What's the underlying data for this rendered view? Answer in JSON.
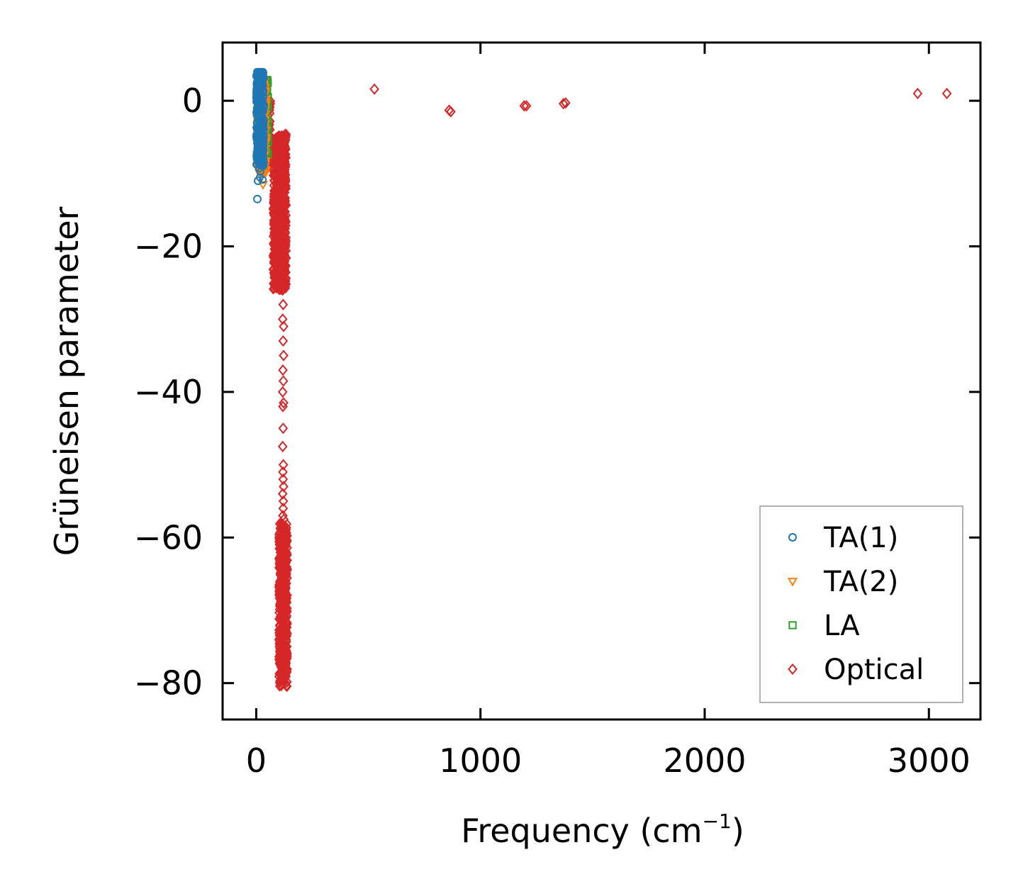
{
  "chart_data": {
    "type": "scatter",
    "title": "",
    "xlabel": "Frequency (cm",
    "xlabel_sup": "−1",
    "xlabel_close": ")",
    "ylabel": "Grüneisen parameter",
    "xlim": [
      -150,
      3230
    ],
    "ylim": [
      -85,
      8
    ],
    "xticks": [
      0,
      1000,
      2000,
      3000
    ],
    "yticks": [
      0,
      -20,
      -40,
      -60,
      -80
    ],
    "xtick_labels": [
      "0",
      "1000",
      "2000",
      "3000"
    ],
    "ytick_labels": [
      "0",
      "−20",
      "−40",
      "−60",
      "−80"
    ],
    "legend_position": "lower-right",
    "series": [
      {
        "name": "TA(1)",
        "marker": "circle",
        "color": "#1f77b4",
        "clusters": [
          {
            "x": [
              0,
              35
            ],
            "y": [
              -9,
              4
            ],
            "n": 320
          },
          {
            "x": [
              10,
              30
            ],
            "y": [
              -11,
              -6
            ],
            "n": 15
          }
        ],
        "points": [
          {
            "x": 5,
            "y": -13.5
          },
          {
            "x": 8,
            "y": -11
          }
        ]
      },
      {
        "name": "TA(2)",
        "marker": "triangle-down",
        "color": "#ff7f0e",
        "clusters": [
          {
            "x": [
              5,
              45
            ],
            "y": [
              -10,
              3
            ],
            "n": 200
          }
        ],
        "points": [
          {
            "x": 30,
            "y": -11.5
          }
        ]
      },
      {
        "name": "LA",
        "marker": "square",
        "color": "#2ca02c",
        "clusters": [
          {
            "x": [
              0,
              55
            ],
            "y": [
              -8,
              3
            ],
            "n": 180
          }
        ],
        "points": [
          {
            "x": 10,
            "y": 3
          }
        ]
      },
      {
        "name": "Optical",
        "marker": "diamond",
        "color": "#d62728",
        "clusters": [
          {
            "x": [
              30,
              65
            ],
            "y": [
              -9,
              0
            ],
            "n": 120
          },
          {
            "x": [
              75,
              135
            ],
            "y": [
              -26,
              -4.5
            ],
            "n": 700
          },
          {
            "x": [
              100,
              140
            ],
            "y": [
              -80.5,
              -58
            ],
            "n": 500
          }
        ],
        "points": [
          {
            "x": 118,
            "y": -26
          },
          {
            "x": 120,
            "y": -28
          },
          {
            "x": 118,
            "y": -30
          },
          {
            "x": 122,
            "y": -31
          },
          {
            "x": 120,
            "y": -33
          },
          {
            "x": 122,
            "y": -35
          },
          {
            "x": 119,
            "y": -37
          },
          {
            "x": 121,
            "y": -38.5
          },
          {
            "x": 118,
            "y": -40
          },
          {
            "x": 122,
            "y": -41.5
          },
          {
            "x": 119,
            "y": -42
          },
          {
            "x": 120,
            "y": -45
          },
          {
            "x": 118,
            "y": -47.5
          },
          {
            "x": 121,
            "y": -50
          },
          {
            "x": 119,
            "y": -51
          },
          {
            "x": 120,
            "y": -52
          },
          {
            "x": 122,
            "y": -53
          },
          {
            "x": 118,
            "y": -54
          },
          {
            "x": 121,
            "y": -55
          },
          {
            "x": 120,
            "y": -56
          },
          {
            "x": 119,
            "y": -57
          },
          {
            "x": 123,
            "y": -57.5
          },
          {
            "x": 527,
            "y": 1.6
          },
          {
            "x": 860,
            "y": -1.3
          },
          {
            "x": 868,
            "y": -1.5
          },
          {
            "x": 1195,
            "y": -0.7
          },
          {
            "x": 1205,
            "y": -0.7
          },
          {
            "x": 1370,
            "y": -0.4
          },
          {
            "x": 1380,
            "y": -0.3
          },
          {
            "x": 2950,
            "y": 1.0
          },
          {
            "x": 3080,
            "y": 1.0
          }
        ]
      }
    ]
  }
}
